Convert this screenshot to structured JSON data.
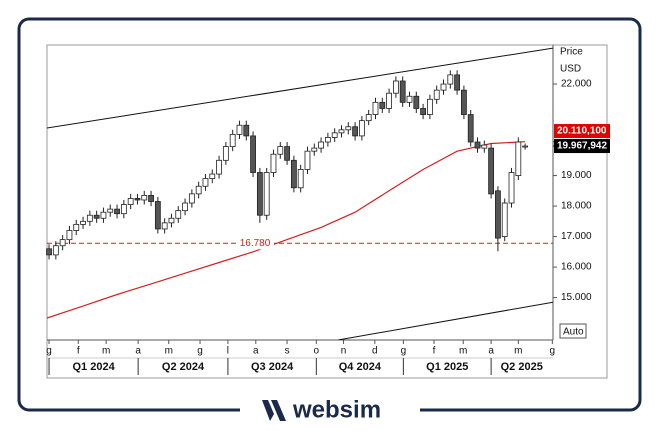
{
  "chart_data": {
    "type": "candlestick",
    "axis_title": "Price",
    "axis_unit": "USD",
    "scale_button": "Auto",
    "categories": [
      null,
      null,
      null,
      null,
      null,
      null,
      null,
      null,
      null,
      null,
      null,
      null,
      null,
      null,
      null,
      null,
      null,
      null,
      null,
      null,
      null,
      null,
      null,
      null,
      null,
      null,
      null,
      null,
      null,
      null,
      null,
      null,
      null,
      null,
      null,
      null,
      null,
      null,
      null,
      null,
      null,
      null,
      null,
      null,
      null,
      null,
      null,
      null,
      null,
      null,
      null,
      null,
      null,
      null,
      null,
      null,
      null,
      null,
      null,
      null,
      null,
      null,
      null,
      null,
      null,
      null,
      null,
      null,
      null,
      null,
      null
    ],
    "open": [
      16600,
      16400,
      16700,
      16900,
      17200,
      17400,
      17500,
      17700,
      17600,
      17800,
      17900,
      17750,
      18050,
      18250,
      18200,
      18350,
      18150,
      17250,
      17450,
      17600,
      17850,
      18100,
      18400,
      18650,
      18900,
      19050,
      19500,
      19950,
      20350,
      20650,
      20300,
      19100,
      17700,
      19100,
      19700,
      19950,
      19500,
      18600,
      19200,
      19800,
      19900,
      20100,
      20250,
      20400,
      20500,
      20600,
      20300,
      20800,
      21000,
      21400,
      21200,
      21700,
      22100,
      21400,
      21600,
      21200,
      21000,
      21500,
      21800,
      22000,
      22300,
      21800,
      21000,
      20100,
      19900,
      19900,
      18500,
      17000,
      18100,
      19000,
      19950
    ],
    "high": [
      16750,
      16850,
      17050,
      17350,
      17550,
      17650,
      17850,
      17850,
      17950,
      18050,
      18050,
      18200,
      18400,
      18400,
      18500,
      18500,
      18300,
      17600,
      17750,
      18000,
      18250,
      18550,
      18800,
      19050,
      19200,
      19650,
      20100,
      20500,
      20800,
      20800,
      20450,
      19250,
      19250,
      19850,
      20100,
      20100,
      19650,
      19350,
      19950,
      20050,
      20250,
      20400,
      20550,
      20650,
      20750,
      20750,
      20950,
      21150,
      21550,
      21550,
      21850,
      22250,
      22250,
      21750,
      21750,
      21350,
      21650,
      21950,
      22150,
      22450,
      22450,
      21950,
      21150,
      20250,
      20150,
      20050,
      18650,
      18250,
      19250,
      20250,
      20050
    ],
    "low": [
      16250,
      16250,
      16550,
      16750,
      17050,
      17250,
      17350,
      17450,
      17450,
      17650,
      17600,
      17600,
      17900,
      18050,
      18050,
      18000,
      17100,
      17100,
      17300,
      17450,
      17700,
      17950,
      18250,
      18500,
      18750,
      18900,
      19350,
      19800,
      20200,
      20150,
      18950,
      17450,
      17550,
      18950,
      19550,
      19350,
      18450,
      18450,
      19050,
      19650,
      19750,
      19950,
      20100,
      20250,
      20350,
      20150,
      20150,
      20650,
      20850,
      21050,
      21050,
      21550,
      21250,
      21250,
      21050,
      20850,
      20850,
      21350,
      21650,
      21850,
      21650,
      20850,
      19950,
      19750,
      19750,
      18250,
      16520,
      16850,
      17950,
      18850,
      19850
    ],
    "close": [
      16400,
      16700,
      16900,
      17200,
      17400,
      17500,
      17700,
      17600,
      17800,
      17900,
      17750,
      18050,
      18250,
      18200,
      18350,
      18150,
      17250,
      17450,
      17600,
      17850,
      18100,
      18400,
      18650,
      18900,
      19050,
      19500,
      19950,
      20350,
      20650,
      20300,
      19100,
      17700,
      19100,
      19700,
      19950,
      19500,
      18600,
      19200,
      19800,
      19900,
      20100,
      20250,
      20400,
      20500,
      20600,
      20300,
      20800,
      21000,
      21400,
      21200,
      21700,
      22100,
      21400,
      21600,
      21200,
      21000,
      21500,
      21800,
      22000,
      22300,
      21800,
      21000,
      20100,
      19900,
      20000,
      18400,
      16950,
      18100,
      19100,
      20100,
      19968
    ],
    "up_color": "#ffffff",
    "down_color": "#555555",
    "moving_average": {
      "color": "#d42020",
      "x": [
        -0.3,
        5,
        10,
        15,
        20,
        25,
        30,
        35,
        40,
        45,
        50,
        55,
        60,
        65,
        70
      ],
      "values": [
        14330,
        14720,
        15100,
        15450,
        15800,
        16150,
        16500,
        16900,
        17300,
        17800,
        18500,
        19200,
        19800,
        20050,
        20110
      ]
    },
    "trendlines": [
      {
        "color": "#111111",
        "x": [
          -0.3,
          74.1
        ],
        "values": [
          20560,
          23180
        ]
      },
      {
        "color": "#111111",
        "x": [
          42.5,
          74.1
        ],
        "values": [
          13610,
          14850
        ]
      }
    ],
    "level": {
      "value": 16780,
      "label": "16.780",
      "color": "#d42020"
    },
    "price_tags": [
      {
        "value": 20110.1,
        "label": "20.110,100",
        "color": "#e00000"
      },
      {
        "value": 19967.942,
        "label": "19.967,942",
        "color": "#000000"
      }
    ],
    "xlim": [
      -0.3,
      74.1
    ],
    "ylim": [
      13610,
      23280
    ],
    "yticks": [
      {
        "value": 22000,
        "label": "22.000"
      },
      {
        "value": 19000,
        "label": "19.000"
      },
      {
        "value": 18000,
        "label": "18.000"
      },
      {
        "value": 17000,
        "label": "17.000"
      },
      {
        "value": 16000,
        "label": "16.000"
      },
      {
        "value": 15000,
        "label": "15.000"
      }
    ],
    "xticks": [
      {
        "value": 0,
        "label": "g"
      },
      {
        "value": 4.3,
        "label": "f"
      },
      {
        "value": 8.4,
        "label": "m"
      },
      {
        "value": 13.1,
        "label": "a"
      },
      {
        "value": 17.6,
        "label": "m"
      },
      {
        "value": 22.2,
        "label": "g"
      },
      {
        "value": 26.3,
        "label": "l"
      },
      {
        "value": 30.4,
        "label": "a"
      },
      {
        "value": 35,
        "label": "s"
      },
      {
        "value": 39.3,
        "label": "o"
      },
      {
        "value": 43.3,
        "label": "n"
      },
      {
        "value": 47.9,
        "label": "d"
      },
      {
        "value": 52.1,
        "label": "g"
      },
      {
        "value": 56.6,
        "label": "f"
      },
      {
        "value": 60.9,
        "label": "m"
      },
      {
        "value": 65,
        "label": "a"
      },
      {
        "value": 69,
        "label": "m"
      },
      {
        "value": 74,
        "label": "g"
      }
    ],
    "quarters": [
      "Q1 2024",
      "Q2 2024",
      "Q3 2024",
      "Q4 2024",
      "Q1 2025",
      "Q2 2025"
    ]
  },
  "footer": {
    "brand": "websim"
  }
}
